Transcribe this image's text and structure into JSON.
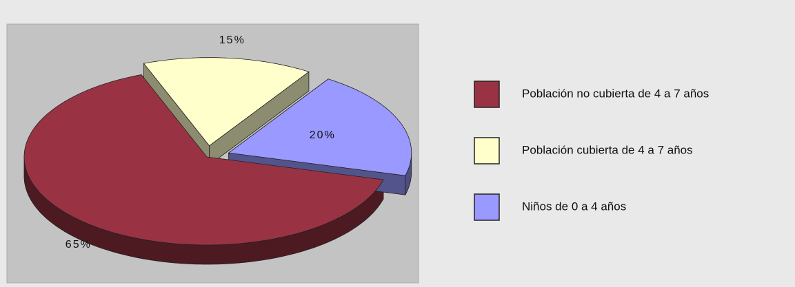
{
  "chart_data": {
    "type": "pie",
    "categories": [
      "Población no cubierta de 4 a 7 años",
      "Población cubierta de 4 a 7 años",
      "Niños de 0 a 4 años"
    ],
    "values": [
      65,
      15,
      20
    ],
    "value_labels": [
      "65%",
      "15%",
      "20%"
    ],
    "colors": [
      "#993344",
      "#ffffcc",
      "#9999ff"
    ],
    "legend": "right"
  }
}
